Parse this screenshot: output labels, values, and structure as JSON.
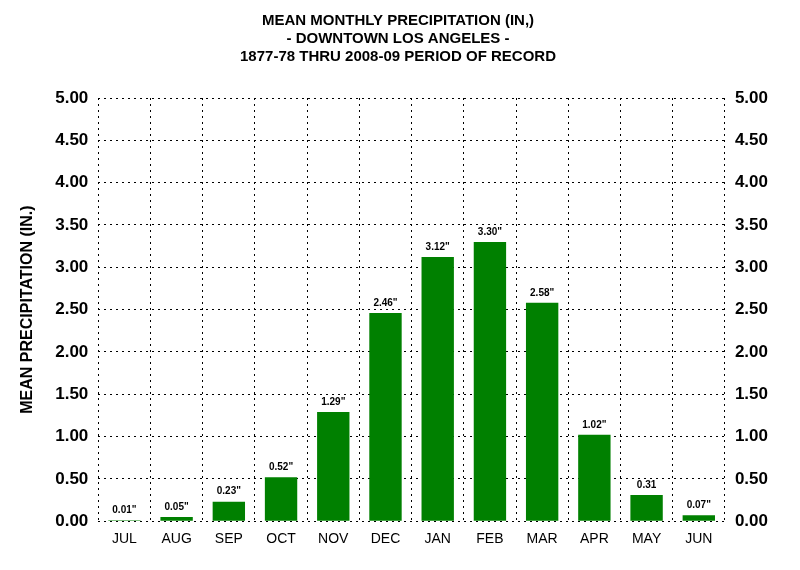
{
  "chart_data": {
    "type": "bar",
    "title": [
      "MEAN MONTHLY PRECIPITATION (IN,)",
      "- DOWNTOWN LOS ANGELES -",
      "1877-78 THRU 2008-09 PERIOD OF RECORD"
    ],
    "y_label": "MEAN PRECIPITATION (IN.)",
    "categories": [
      "JUL",
      "AUG",
      "SEP",
      "OCT",
      "NOV",
      "DEC",
      "JAN",
      "FEB",
      "MAR",
      "APR",
      "MAY",
      "JUN"
    ],
    "values": [
      0.01,
      0.05,
      0.23,
      0.52,
      1.29,
      2.46,
      3.12,
      3.3,
      2.58,
      1.02,
      0.31,
      0.07
    ],
    "value_labels": [
      "0.01\"",
      "0.05\"",
      "0.23\"",
      "0.52\"",
      "1.29\"",
      "2.46\"",
      "3.12\"",
      "3.30\"",
      "2.58\"",
      "1.02\"",
      "0.31",
      "0.07\""
    ],
    "color": "#008000",
    "ylim": [
      0,
      5
    ],
    "yticks": [
      {
        "value": 0,
        "label": "0.00"
      },
      {
        "value": 0.5,
        "label": "0.50"
      },
      {
        "value": 1,
        "label": "1.00"
      },
      {
        "value": 1.5,
        "label": "1.50"
      },
      {
        "value": 2,
        "label": "2.00"
      },
      {
        "value": 2.5,
        "label": "2.50"
      },
      {
        "value": 3,
        "label": "3.00"
      },
      {
        "value": 3.5,
        "label": "3.50"
      },
      {
        "value": 4,
        "label": "4.00"
      },
      {
        "value": 4.5,
        "label": "4.50"
      },
      {
        "value": 5,
        "label": "5.00"
      }
    ],
    "grid": true,
    "data_labels": true
  }
}
